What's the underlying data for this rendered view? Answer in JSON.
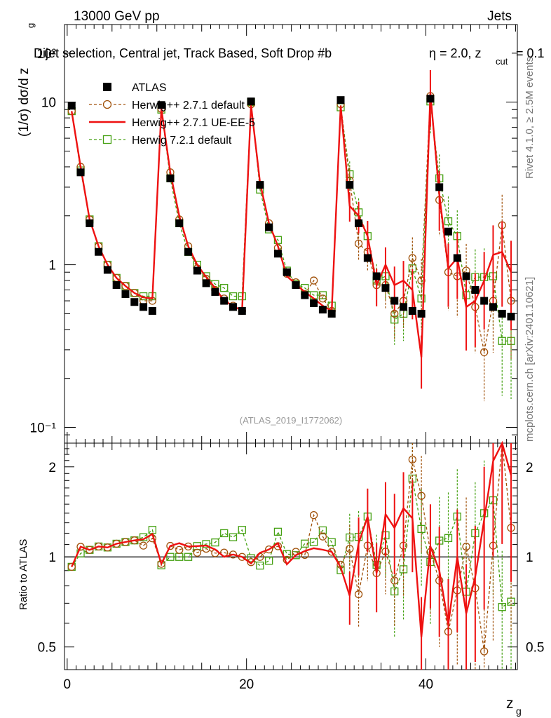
{
  "header": {
    "left": "13000 GeV pp",
    "right": "Jets",
    "selection": "Dijet selection, Central jet, Track Based, Soft Drop #b",
    "beta_label": "η = 2.0, z",
    "beta_sub": "cut",
    "beta_value": " = 0.1"
  },
  "side": {
    "rivet": "Rivet 4.1.0, ≥ 2.5M events",
    "mcplots": "mcplots.cern.ch [arXiv:2401.10621]"
  },
  "watermark": "(ATLAS_2019_I1772062)",
  "colors": {
    "atlas": "#000000",
    "herwigpp_default": "#a0510a",
    "herwigpp_ueee5": "#ee1111",
    "herwig7": "#44a011"
  },
  "chart_data": {
    "type": "line",
    "x": [
      0.5,
      1.5,
      2.5,
      3.5,
      4.5,
      5.5,
      6.5,
      7.5,
      8.5,
      9.5,
      10.5,
      11.5,
      12.5,
      13.5,
      14.5,
      15.5,
      16.5,
      17.5,
      18.5,
      19.5,
      20.5,
      21.5,
      22.5,
      23.5,
      24.5,
      25.5,
      26.5,
      27.5,
      28.5,
      29.5,
      30.5,
      31.5,
      32.5,
      33.5,
      34.5,
      35.5,
      36.5,
      37.5,
      38.5,
      39.5,
      40.5,
      41.5,
      42.5,
      43.5,
      44.5,
      45.5,
      46.5,
      47.5,
      48.5,
      49.5
    ],
    "xlabel": "z",
    "xlabel_sub": "g",
    "xlim": [
      -0.3,
      50.2
    ],
    "xticks": [
      0,
      20,
      40
    ],
    "ylabel": "(1/σ) dσ/d z",
    "ylabel_sub": "g",
    "ylim": [
      0.08,
      30
    ],
    "yscale": "log",
    "yticks": [
      {
        "v": 10,
        "label": "10"
      },
      {
        "v": 1,
        "label": "1"
      },
      {
        "v": 0.1,
        "label": "10⁻¹"
      },
      {
        "v": 100,
        "label": "10²"
      }
    ],
    "series": [
      {
        "name": "ATLAS",
        "style": "marker-square",
        "values": [
          9.5,
          3.7,
          1.8,
          1.2,
          0.93,
          0.75,
          0.66,
          0.59,
          0.55,
          0.52,
          9.6,
          3.4,
          1.8,
          1.2,
          0.92,
          0.77,
          0.68,
          0.6,
          0.55,
          0.52,
          10.1,
          3.1,
          1.7,
          1.17,
          0.9,
          0.75,
          0.65,
          0.58,
          0.53,
          0.5,
          10.3,
          3.1,
          1.8,
          1.1,
          0.85,
          0.72,
          0.6,
          0.55,
          0.52,
          0.5,
          10.5,
          3.0,
          1.6,
          1.1,
          0.85,
          0.7,
          0.6,
          0.55,
          0.5,
          0.48
        ]
      },
      {
        "name": "Herwig++ 2.7.1 default",
        "style": "dashed-circle",
        "values": [
          8.8,
          4.0,
          1.9,
          1.3,
          1.0,
          0.83,
          0.74,
          0.67,
          0.6,
          0.6,
          9.1,
          3.7,
          1.9,
          1.3,
          0.95,
          0.82,
          0.7,
          0.62,
          0.56,
          0.52,
          9.7,
          3.1,
          1.8,
          1.27,
          0.88,
          0.78,
          0.66,
          0.8,
          0.62,
          0.52,
          9.7,
          3.3,
          1.35,
          1.2,
          0.75,
          0.75,
          0.5,
          0.6,
          1.1,
          0.8,
          10.9,
          2.5,
          0.9,
          0.85,
          0.92,
          0.55,
          0.29,
          0.6,
          1.75,
          0.6
        ]
      },
      {
        "name": "Herwig++ 2.7.1 UE-EE-5",
        "style": "solid",
        "values": [
          8.8,
          4.0,
          1.9,
          1.3,
          1.0,
          0.83,
          0.74,
          0.67,
          0.63,
          0.62,
          9.1,
          3.7,
          2.0,
          1.3,
          1.0,
          0.84,
          0.72,
          0.6,
          0.56,
          0.52,
          9.6,
          3.2,
          1.8,
          1.3,
          0.85,
          0.76,
          0.68,
          0.62,
          0.56,
          0.52,
          9.5,
          2.3,
          2.0,
          1.5,
          0.75,
          1.0,
          0.75,
          0.8,
          0.7,
          0.27,
          11.4,
          2.7,
          0.95,
          1.1,
          0.55,
          0.6,
          0.8,
          1.15,
          1.2,
          0.9
        ]
      },
      {
        "name": "Herwig 7.2.1 default",
        "style": "dashed-square",
        "values": [
          8.8,
          3.8,
          1.9,
          1.3,
          1.0,
          0.83,
          0.74,
          0.67,
          0.64,
          0.64,
          9.0,
          3.4,
          1.8,
          1.2,
          1.0,
          0.85,
          0.76,
          0.72,
          0.64,
          0.64,
          10.0,
          2.9,
          1.65,
          1.42,
          0.92,
          0.76,
          0.72,
          0.65,
          0.65,
          0.56,
          9.3,
          3.6,
          2.1,
          1.5,
          0.8,
          0.85,
          0.46,
          0.5,
          0.95,
          0.62,
          10.1,
          3.4,
          1.85,
          1.5,
          0.65,
          0.84,
          0.84,
          0.85,
          0.34,
          0.34
        ]
      }
    ],
    "ratio": {
      "ylabel": "Ratio to ATLAS",
      "ylim": [
        0.42,
        2.4
      ],
      "yticks": [
        {
          "v": 0.5,
          "label": "0.5"
        },
        {
          "v": 1,
          "label": "1"
        },
        {
          "v": 2,
          "label": "2"
        }
      ]
    },
    "legend": [
      {
        "label": "ATLAS",
        "style": "marker-square"
      },
      {
        "label": "Herwig++ 2.7.1 default",
        "style": "dashed-circle"
      },
      {
        "label": "Herwig++ 2.7.1 UE-EE-5",
        "style": "solid"
      },
      {
        "label": "Herwig 7.2.1 default",
        "style": "dashed-square"
      }
    ],
    "legend_position": "top-left"
  }
}
